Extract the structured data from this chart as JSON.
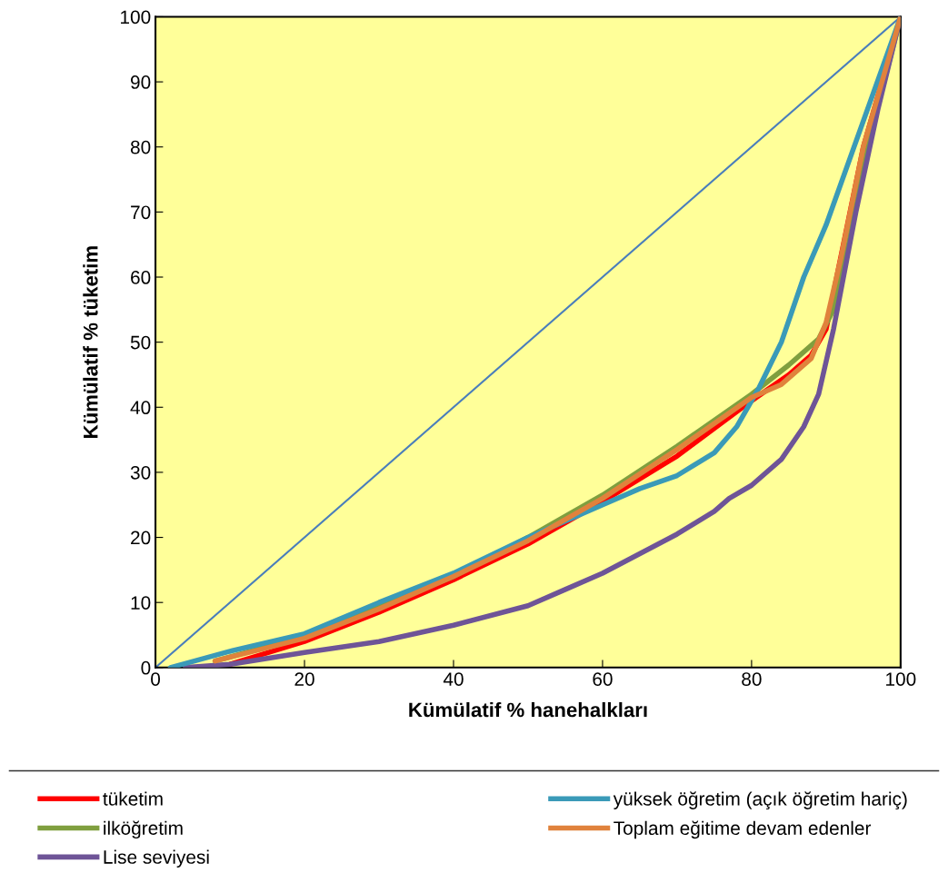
{
  "chart_data": {
    "type": "line",
    "xlabel": "Kümülatif % hanehalkları",
    "ylabel": "Kümülatif % tüketim",
    "xlim": [
      0,
      100
    ],
    "ylim": [
      0,
      100
    ],
    "xticks": [
      0,
      20,
      40,
      60,
      80,
      100
    ],
    "yticks": [
      0,
      10,
      20,
      30,
      40,
      50,
      60,
      70,
      80,
      90,
      100
    ],
    "grid": false,
    "legend": "bottom",
    "marker": "none",
    "line_style": "solid",
    "series": [
      {
        "name": "tüketim",
        "color": "#ff0000",
        "x": [
          10,
          20,
          30,
          40,
          50,
          60,
          70,
          80,
          85,
          88,
          90,
          95,
          100
        ],
        "values": [
          0.5,
          4,
          8.5,
          13.5,
          19,
          25.5,
          32.5,
          41,
          45,
          48,
          52,
          80,
          100
        ]
      },
      {
        "name": "ilköğretim",
        "color": "#7f9f3f",
        "x": [
          8,
          20,
          30,
          40,
          50,
          60,
          70,
          80,
          85,
          89,
          91,
          93,
          96,
          100
        ],
        "values": [
          1,
          4.8,
          9.5,
          14,
          20,
          26.5,
          34,
          42,
          46.5,
          50.5,
          55,
          65,
          82,
          100
        ]
      },
      {
        "name": "Lise seviyesi",
        "color": "#6e5497",
        "x": [
          4,
          10,
          20,
          30,
          40,
          50,
          55,
          60,
          70,
          75,
          77,
          80,
          84,
          87,
          89,
          91,
          94,
          97,
          100
        ],
        "values": [
          0,
          0.5,
          2.3,
          4,
          6.5,
          9.5,
          12,
          14.5,
          20.5,
          24,
          26,
          28,
          32,
          37,
          42,
          52,
          70,
          86,
          100
        ]
      },
      {
        "name": "yüksek öğretim (açık öğretim hariç)",
        "color": "#3a9ab8",
        "x": [
          2,
          10,
          20,
          30,
          40,
          50,
          60,
          65,
          70,
          75,
          78,
          81,
          84,
          87,
          90,
          95,
          100
        ],
        "values": [
          0,
          2.5,
          5.2,
          10,
          14.5,
          20,
          25,
          27.5,
          29.5,
          33,
          37,
          43,
          50,
          60,
          68,
          84,
          100
        ]
      },
      {
        "name": "Toplam eğitime devam edenler",
        "color": "#e0823c",
        "x": [
          8,
          20,
          30,
          40,
          50,
          60,
          70,
          80,
          84,
          88,
          90,
          92,
          95,
          100
        ],
        "values": [
          1,
          4.5,
          9,
          14,
          19.5,
          26,
          33.5,
          41.5,
          43.5,
          47.5,
          53,
          63,
          80,
          100
        ]
      },
      {
        "color": "#4a7ebb",
        "x": [
          0,
          100
        ],
        "values": [
          0,
          100
        ]
      }
    ]
  }
}
